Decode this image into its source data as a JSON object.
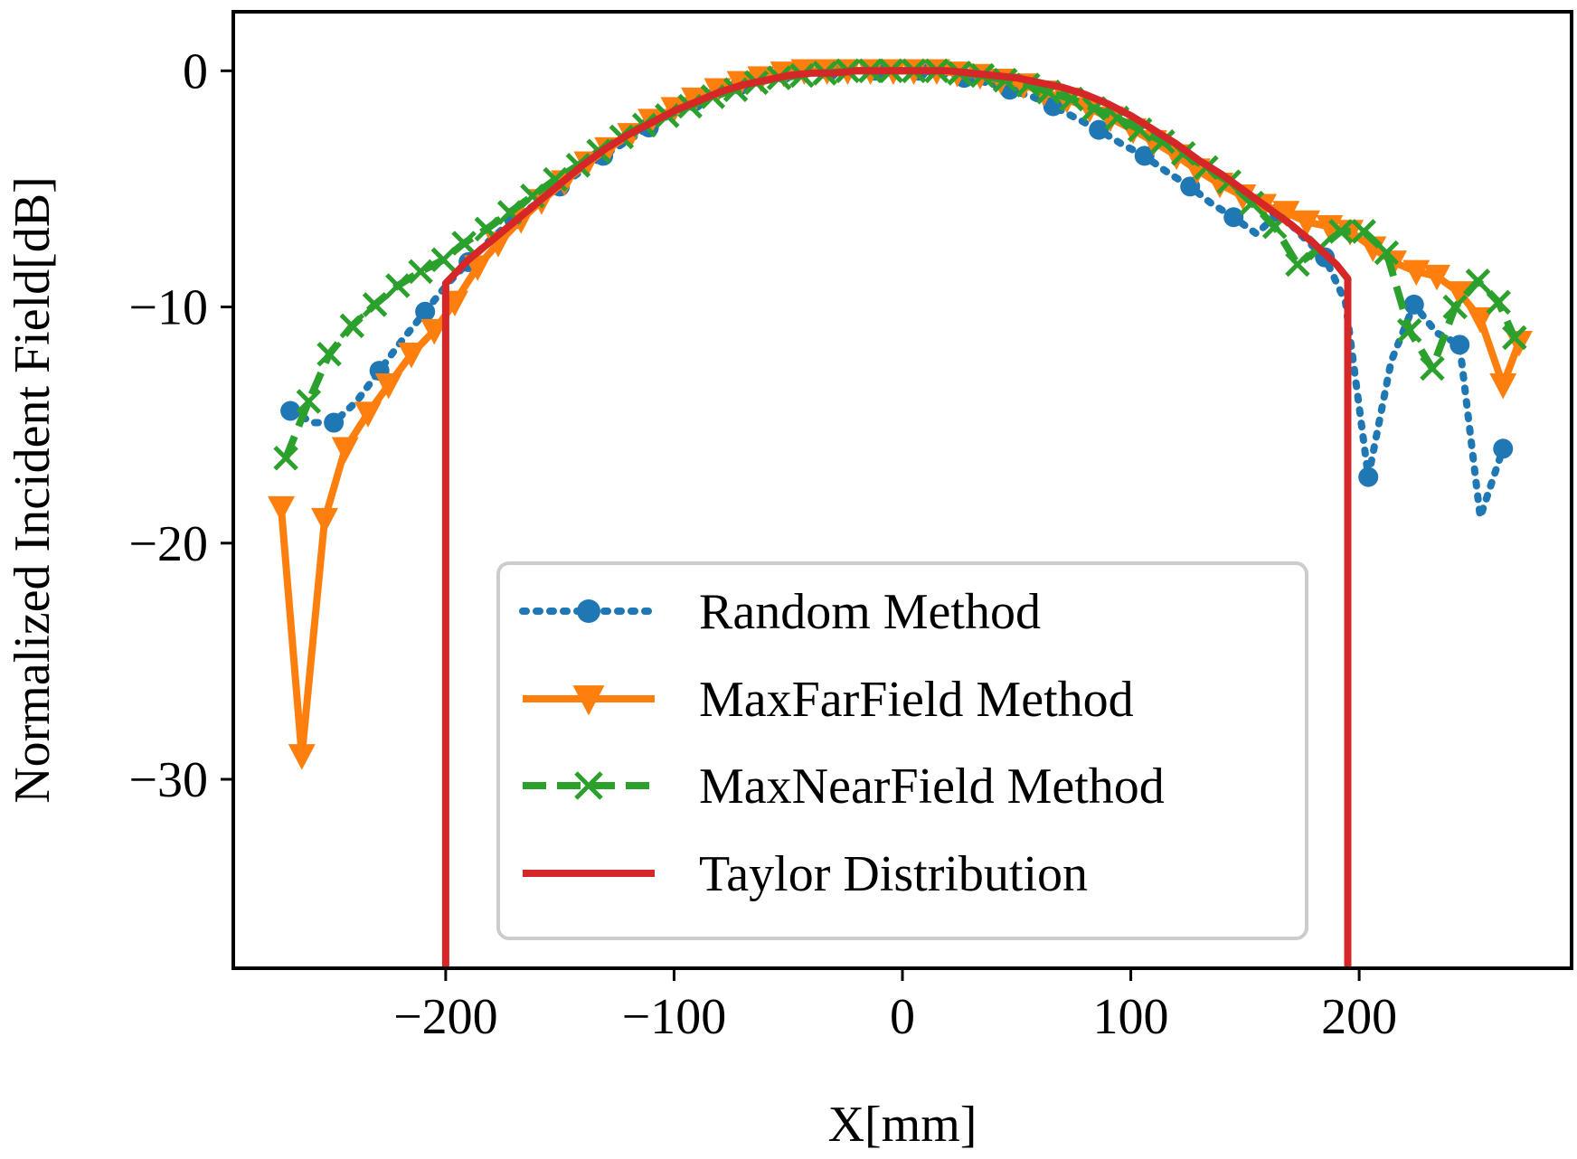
{
  "chart_data": {
    "type": "line",
    "title": "",
    "xlabel": "X[mm]",
    "ylabel": "Normalized Incident Field[dB]",
    "xlim": [
      -293,
      293
    ],
    "ylim": [
      -38,
      2.5
    ],
    "xticks": [
      -200,
      -100,
      0,
      100,
      200
    ],
    "yticks": [
      0,
      -10,
      -20,
      -30
    ],
    "xtick_labels": [
      "−200",
      "−100",
      "0",
      "100",
      "200"
    ],
    "ytick_labels": [
      "0",
      "−10",
      "−20",
      "−30"
    ],
    "grid": false,
    "legend_position": "lower-center",
    "series": [
      {
        "name": "Random Method",
        "style": "dotted",
        "marker": "circle",
        "color": "#1f77b4",
        "x": [
          -268,
          -258,
          -249,
          -239,
          -229,
          -219,
          -209,
          -199,
          -190,
          -180,
          -170,
          -160,
          -150,
          -140,
          -131,
          -121,
          -111,
          -101,
          -91,
          -81,
          -71,
          -61,
          -52,
          -42,
          -32,
          -22,
          -12,
          -2,
          7,
          17,
          27,
          37,
          47,
          57,
          66,
          76,
          86,
          96,
          106,
          116,
          126,
          135,
          145,
          155,
          165,
          175,
          185,
          194,
          204,
          214,
          224,
          234,
          244,
          253,
          263
        ],
        "y": [
          -14.4,
          -14.9,
          -14.9,
          -14.0,
          -12.7,
          -11.4,
          -10.2,
          -9.0,
          -8.1,
          -7.1,
          -6.3,
          -5.6,
          -4.9,
          -4.2,
          -3.6,
          -3.0,
          -2.4,
          -1.8,
          -1.3,
          -0.9,
          -0.6,
          -0.3,
          -0.1,
          -0.1,
          0.0,
          0.0,
          0.0,
          0.0,
          0.0,
          -0.1,
          -0.3,
          -0.5,
          -0.8,
          -1.1,
          -1.5,
          -2.0,
          -2.5,
          -3.1,
          -3.6,
          -4.3,
          -4.9,
          -5.6,
          -6.2,
          -6.9,
          -6.0,
          -7.0,
          -7.9,
          -9.8,
          -17.2,
          -12.3,
          -9.9,
          -11.1,
          -11.6,
          -18.9,
          -16.0
        ],
        "markers_every": 2
      },
      {
        "name": "MaxFarField Method",
        "style": "solid",
        "marker": "triangle-down",
        "color": "#ff7f0e",
        "x": [
          -272,
          -263,
          -253,
          -244,
          -234,
          -225,
          -215,
          -205,
          -196,
          -186,
          -177,
          -167,
          -158,
          -148,
          -138,
          -129,
          -119,
          -110,
          -100,
          -91,
          -81,
          -71,
          -62,
          -52,
          -43,
          -33,
          -24,
          -14,
          -4,
          5,
          15,
          24,
          34,
          43,
          53,
          62,
          72,
          82,
          91,
          101,
          110,
          120,
          129,
          139,
          149,
          158,
          168,
          177,
          187,
          196,
          206,
          215,
          225,
          234,
          244,
          253,
          263,
          270
        ],
        "y": [
          -18.5,
          -29.0,
          -19.0,
          -16.0,
          -14.5,
          -13.3,
          -12.0,
          -11.0,
          -9.8,
          -8.3,
          -7.3,
          -6.3,
          -5.5,
          -4.7,
          -3.9,
          -3.3,
          -2.7,
          -2.1,
          -1.6,
          -1.2,
          -0.8,
          -0.5,
          -0.3,
          -0.1,
          0.0,
          0.0,
          0.0,
          0.0,
          0.0,
          0.0,
          0.0,
          -0.1,
          -0.2,
          -0.4,
          -0.6,
          -0.9,
          -1.2,
          -1.6,
          -2.0,
          -2.5,
          -3.0,
          -3.6,
          -4.2,
          -4.8,
          -5.3,
          -5.7,
          -6.0,
          -6.4,
          -6.6,
          -6.8,
          -7.5,
          -8.1,
          -8.5,
          -8.7,
          -9.4,
          -10.5,
          -13.3,
          -11.5
        ],
        "markers_every": 1
      },
      {
        "name": "MaxNearField Method",
        "style": "dashed",
        "marker": "x",
        "color": "#2ca02c",
        "x": [
          -270,
          -260,
          -251,
          -241,
          -231,
          -221,
          -211,
          -201,
          -192,
          -182,
          -172,
          -162,
          -152,
          -142,
          -133,
          -123,
          -113,
          -103,
          -93,
          -83,
          -73,
          -64,
          -54,
          -44,
          -34,
          -24,
          -14,
          -5,
          5,
          15,
          25,
          35,
          45,
          55,
          64,
          74,
          84,
          94,
          104,
          114,
          123,
          133,
          143,
          153,
          163,
          173,
          183,
          192,
          202,
          212,
          222,
          232,
          242,
          252,
          261,
          268
        ],
        "y": [
          -16.4,
          -14.0,
          -12.0,
          -10.8,
          -9.9,
          -9.1,
          -8.5,
          -8.0,
          -7.3,
          -6.7,
          -6.0,
          -5.3,
          -4.6,
          -4.0,
          -3.4,
          -2.8,
          -2.3,
          -1.9,
          -1.5,
          -1.1,
          -0.8,
          -0.5,
          -0.3,
          -0.2,
          -0.1,
          0.0,
          0.0,
          0.0,
          0.0,
          0.0,
          -0.1,
          -0.2,
          -0.4,
          -0.6,
          -0.9,
          -1.2,
          -1.6,
          -2.0,
          -2.5,
          -3.0,
          -3.5,
          -4.1,
          -4.7,
          -5.6,
          -6.6,
          -8.2,
          -7.5,
          -6.8,
          -6.8,
          -7.7,
          -11.0,
          -12.6,
          -10.0,
          -8.9,
          -9.8,
          -11.3
        ],
        "markers_every": 1
      },
      {
        "name": "Taylor Distribution",
        "style": "solid",
        "marker": "none",
        "color": "#d62728",
        "x": [
          -200,
          -200,
          -190,
          -180,
          -170,
          -160,
          -150,
          -140,
          -130,
          -120,
          -110,
          -100,
          -90,
          -80,
          -70,
          -60,
          -50,
          -40,
          -30,
          -20,
          -10,
          0,
          10,
          20,
          30,
          40,
          50,
          60,
          70,
          80,
          90,
          100,
          110,
          120,
          130,
          140,
          150,
          160,
          170,
          180,
          190,
          195,
          195
        ],
        "y": [
          -45,
          -9.0,
          -8.0,
          -7.2,
          -6.4,
          -5.6,
          -4.8,
          -4.0,
          -3.3,
          -2.7,
          -2.2,
          -1.7,
          -1.3,
          -0.9,
          -0.6,
          -0.4,
          -0.2,
          -0.1,
          -0.1,
          0.0,
          0.0,
          0.0,
          0.0,
          0.0,
          -0.1,
          -0.2,
          -0.3,
          -0.5,
          -0.7,
          -1.0,
          -1.4,
          -1.9,
          -2.5,
          -3.1,
          -3.8,
          -4.4,
          -5.1,
          -5.8,
          -6.5,
          -7.3,
          -8.2,
          -8.8,
          -45
        ]
      }
    ]
  }
}
